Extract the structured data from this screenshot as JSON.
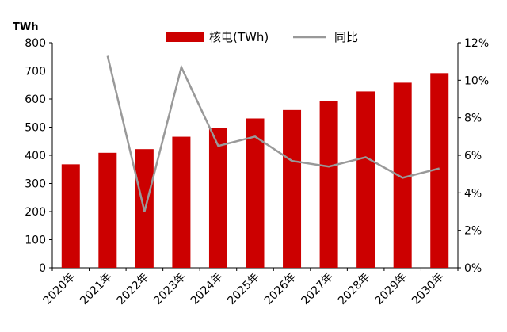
{
  "chart_data": {
    "type": "bar",
    "categories": [
      "2020年",
      "2021年",
      "2022年",
      "2023年",
      "2024年",
      "2025年",
      "2026年",
      "2027年",
      "2028年",
      "2029年",
      "2030年"
    ],
    "y_unit_label": "TWh",
    "ylim": [
      0,
      800
    ],
    "y_ticks": [
      "0",
      "100",
      "200",
      "300",
      "400",
      "500",
      "600",
      "700",
      "800"
    ],
    "y2lim": [
      0,
      12
    ],
    "y2_ticks": [
      "0%",
      "2%",
      "4%",
      "6%",
      "8%",
      "10%",
      "12%"
    ],
    "grid": false,
    "legend_position": "top-center",
    "series": [
      {
        "name": "核电(TWh)",
        "type": "bar",
        "axis": "left",
        "color": "#cc0000",
        "values": [
          368,
          409,
          422,
          466,
          497,
          531,
          561,
          592,
          627,
          658,
          692
        ]
      },
      {
        "name": "同比",
        "type": "line",
        "axis": "right",
        "color": "#999999",
        "values": [
          null,
          11.3,
          3.0,
          10.7,
          6.5,
          7.0,
          5.7,
          5.4,
          5.9,
          4.8,
          5.3
        ]
      }
    ]
  }
}
